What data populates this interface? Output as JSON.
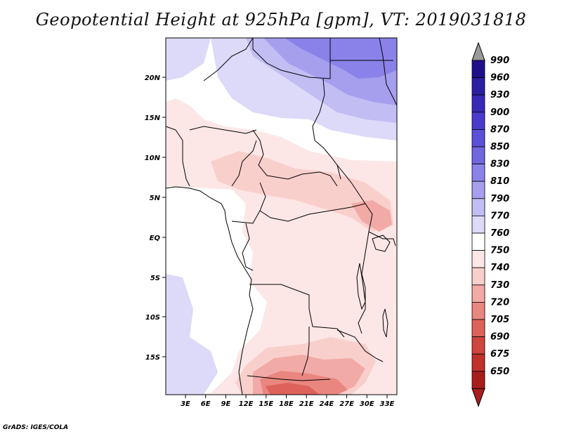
{
  "title": "Geopotential Height at 925hPa [gpm], VT: 2019031818",
  "credit": "GrADS: IGES/COLA",
  "lat_labels": [
    "20N",
    "15N",
    "10N",
    "5N",
    "EQ",
    "5S",
    "10S",
    "15S"
  ],
  "lon_labels": [
    "3E",
    "6E",
    "9E",
    "12E",
    "15E",
    "18E",
    "21E",
    "24E",
    "27E",
    "30E",
    "33E"
  ],
  "legend": {
    "levels": [
      "990",
      "960",
      "930",
      "900",
      "870",
      "850",
      "830",
      "810",
      "790",
      "770",
      "760",
      "750",
      "740",
      "730",
      "720",
      "705",
      "690",
      "675",
      "650"
    ],
    "colors": [
      "#1f0f8a",
      "#2a1fa2",
      "#3828b8",
      "#4a3bcc",
      "#5b50d8",
      "#6f66e0",
      "#8a82e8",
      "#a69fee",
      "#c2bdf3",
      "#dcdaf8",
      "#ffffff",
      "#fde7e6",
      "#f9cfcc",
      "#f2aaa6",
      "#e9867f",
      "#de625b",
      "#d0453f",
      "#c0312c",
      "#a81e1d"
    ],
    "top_arrow": "#999999",
    "bottom_arrow": "#a81e1d"
  },
  "map": {
    "boundary_color": "#000000"
  }
}
